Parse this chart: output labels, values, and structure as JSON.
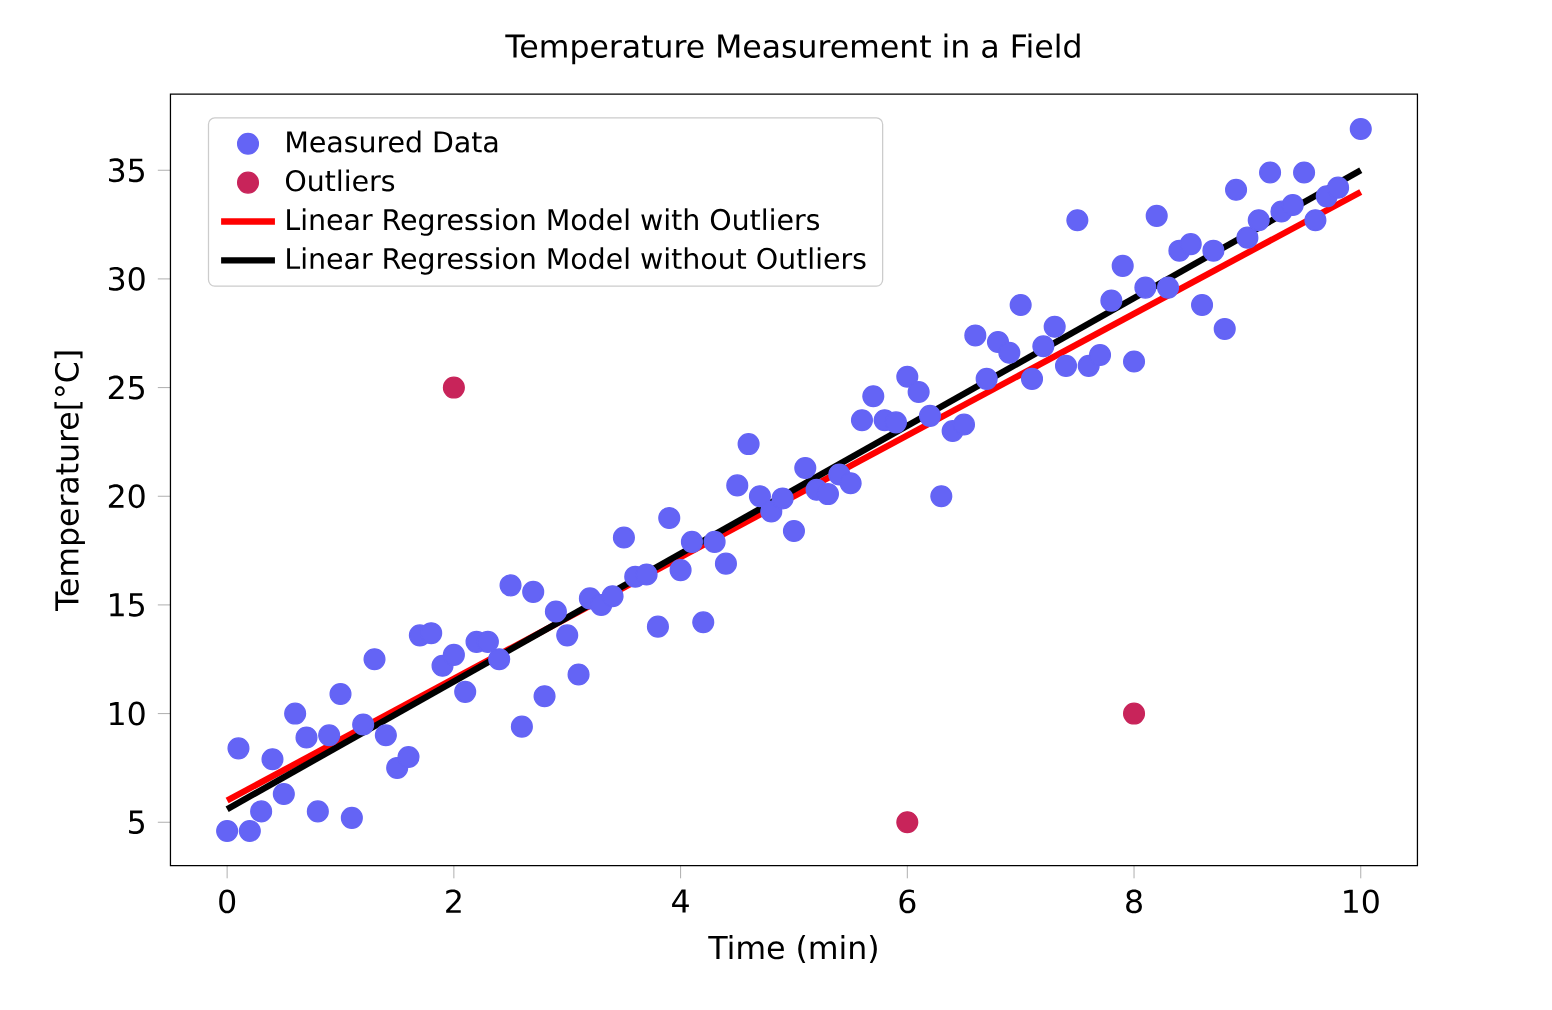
{
  "chart_data": {
    "type": "scatter",
    "title": "Temperature Measurement in a Field",
    "xlabel": "Time (min)",
    "ylabel": "Temperature[°C]",
    "xlim": [
      -0.5,
      10.5
    ],
    "ylim": [
      3.0,
      38.5
    ],
    "xticks": [
      0,
      2,
      4,
      6,
      8,
      10
    ],
    "yticks": [
      5,
      10,
      15,
      20,
      25,
      30,
      35
    ],
    "grid": false,
    "legend": "top left",
    "series": [
      {
        "name": "Measured Data",
        "marker": "circle",
        "color": "#6464f5",
        "x": [
          0.0,
          0.1,
          0.2,
          0.3,
          0.4,
          0.5,
          0.6,
          0.7,
          0.8,
          0.9,
          1.0,
          1.1,
          1.2,
          1.3,
          1.4,
          1.5,
          1.6,
          1.7,
          1.8,
          1.9,
          2.0,
          2.1,
          2.2,
          2.3,
          2.4,
          2.5,
          2.6,
          2.7,
          2.8,
          2.9,
          3.0,
          3.1,
          3.2,
          3.3,
          3.4,
          3.5,
          3.6,
          3.7,
          3.8,
          3.9,
          4.0,
          4.1,
          4.2,
          4.3,
          4.4,
          4.5,
          4.6,
          4.7,
          4.8,
          4.9,
          5.0,
          5.1,
          5.2,
          5.3,
          5.4,
          5.5,
          5.6,
          5.7,
          5.8,
          5.9,
          6.0,
          6.1,
          6.2,
          6.3,
          6.4,
          6.5,
          6.6,
          6.7,
          6.8,
          6.9,
          7.0,
          7.1,
          7.2,
          7.3,
          7.4,
          7.5,
          7.6,
          7.7,
          7.8,
          7.9,
          8.0,
          8.1,
          8.2,
          8.3,
          8.4,
          8.5,
          8.6,
          8.7,
          8.8,
          8.9,
          9.0,
          9.1,
          9.2,
          9.3,
          9.4,
          9.5,
          9.6,
          9.7,
          9.8,
          10.0
        ],
        "values": [
          4.6,
          8.4,
          4.6,
          5.5,
          7.9,
          6.3,
          10.0,
          8.9,
          5.5,
          9.0,
          10.9,
          5.2,
          9.5,
          12.5,
          9.0,
          7.5,
          8.0,
          13.6,
          13.7,
          12.2,
          12.7,
          11.0,
          13.3,
          13.3,
          12.5,
          15.9,
          9.4,
          15.6,
          10.8,
          14.7,
          13.6,
          11.8,
          15.3,
          15.0,
          15.4,
          18.1,
          16.3,
          16.4,
          14.0,
          19.0,
          16.6,
          17.9,
          14.2,
          17.9,
          16.9,
          20.5,
          22.4,
          20.0,
          19.3,
          19.9,
          18.4,
          21.3,
          20.3,
          20.1,
          21.0,
          20.6,
          23.5,
          24.6,
          23.5,
          23.4,
          25.5,
          24.8,
          23.7,
          20.0,
          23.0,
          23.3,
          27.4,
          25.4,
          27.1,
          26.6,
          28.8,
          25.4,
          26.9,
          27.8,
          26.0,
          32.7,
          26.0,
          26.5,
          29.0,
          30.6,
          26.2,
          29.6,
          32.9,
          29.6,
          31.3,
          31.6,
          28.8,
          31.3,
          27.7,
          34.1,
          31.9,
          32.7,
          34.9,
          33.1,
          33.4,
          34.9,
          32.7,
          33.8,
          34.2,
          36.9
        ]
      },
      {
        "name": "Outliers",
        "marker": "circle",
        "color": "#c8245a",
        "x": [
          2.0,
          6.0,
          8.0
        ],
        "values": [
          25.0,
          5.0,
          10.0
        ]
      },
      {
        "name": "Linear Regression Model with Outliers",
        "type": "line",
        "marker": "none",
        "color": "#ff0000",
        "x": [
          0,
          10
        ],
        "values": [
          6.0,
          34.0
        ]
      },
      {
        "name": "Linear Regression Model without Outliers",
        "type": "line",
        "marker": "none",
        "color": "#000000",
        "x": [
          0,
          10
        ],
        "values": [
          5.6,
          35.0
        ]
      }
    ]
  }
}
